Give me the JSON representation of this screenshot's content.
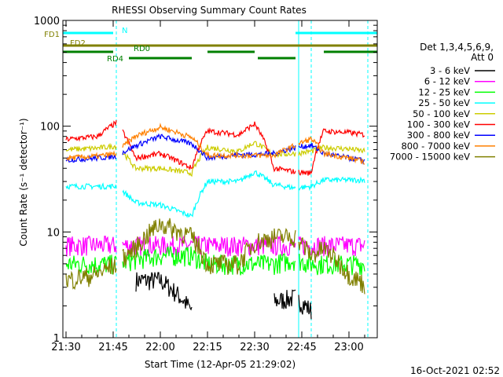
{
  "chart_data": {
    "type": "line",
    "title": "RHESSI Observing Summary Count Rates",
    "xlabel": "Start Time (12-Apr-05 21:29:02)",
    "ylabel": "Count Rate (s⁻¹ detector⁻¹)",
    "yscale": "log",
    "ylim": [
      1,
      1000
    ],
    "xlim": [
      "21:29",
      "23:09"
    ],
    "x_ticks": [
      "21:30",
      "21:45",
      "22:00",
      "22:15",
      "22:30",
      "22:45",
      "23:00"
    ],
    "y_ticks": [
      "1",
      "10",
      "100",
      "1000"
    ],
    "footer": "16-Oct-2021 02:52",
    "legend_header": [
      "Det 1,3,4,5,6,9,",
      "Att 0"
    ],
    "legend_position": "right",
    "x_time": [
      "21:30",
      "21:40",
      "21:46",
      "21:52",
      "22:00",
      "22:10",
      "22:15",
      "22:25",
      "22:30",
      "22:36",
      "22:43",
      "22:48",
      "22:52",
      "23:00",
      "23:05"
    ],
    "series": [
      {
        "name": "3 - 6 keV",
        "color": "#000000",
        "values": [
          null,
          null,
          null,
          3.5,
          3.5,
          1.8,
          null,
          null,
          null,
          2.2,
          2.4,
          1.8,
          null,
          null,
          null
        ]
      },
      {
        "name": "6 - 12 keV",
        "color": "#ff00ff",
        "values": [
          7.5,
          7.5,
          7.5,
          7.5,
          7.5,
          7.5,
          7.5,
          7.5,
          7.5,
          7.5,
          7.5,
          7.5,
          7.5,
          7.5,
          7.5
        ]
      },
      {
        "name": "12 - 25 keV",
        "color": "#00ff00",
        "values": [
          5,
          5,
          5,
          5.5,
          6,
          6,
          5,
          5,
          5,
          5,
          5.5,
          5,
          5,
          5,
          5
        ]
      },
      {
        "name": "25 - 50 keV",
        "color": "#00ffff",
        "values": [
          27,
          27,
          27,
          19,
          18,
          14,
          30,
          30,
          37,
          28,
          26,
          27,
          31,
          31,
          31
        ]
      },
      {
        "name": "50 - 100 keV",
        "color": "#cccc00",
        "values": [
          60,
          62,
          65,
          40,
          40,
          36,
          63,
          58,
          70,
          54,
          55,
          58,
          63,
          61,
          58
        ]
      },
      {
        "name": "100 - 300 keV",
        "color": "#ff0000",
        "values": [
          75,
          80,
          108,
          50,
          55,
          40,
          90,
          83,
          105,
          40,
          37,
          36,
          90,
          87,
          83
        ]
      },
      {
        "name": "300 - 800 keV",
        "color": "#0000ff",
        "values": [
          48,
          50,
          52,
          65,
          80,
          68,
          50,
          54,
          54,
          55,
          63,
          66,
          55,
          50,
          47
        ]
      },
      {
        "name": "800 - 7000 keV",
        "color": "#ff8000",
        "values": [
          50,
          52,
          55,
          80,
          98,
          78,
          53,
          53,
          53,
          53,
          66,
          76,
          55,
          50,
          46
        ]
      },
      {
        "name": "7000 - 15000 keV",
        "color": "#808000",
        "values": [
          3.5,
          4,
          5,
          7,
          12,
          9,
          5,
          5,
          8,
          9,
          9,
          6,
          7,
          4,
          3.2
        ]
      }
    ],
    "attenuator_bars": [
      {
        "label": "FD1",
        "color": "#808000"
      },
      {
        "label": "FD2",
        "color": "#808000"
      },
      {
        "label": "RD0",
        "color": "#008000"
      },
      {
        "label": "RD4",
        "color": "#008000"
      },
      {
        "label": "N",
        "color": "#00ffff"
      }
    ]
  }
}
